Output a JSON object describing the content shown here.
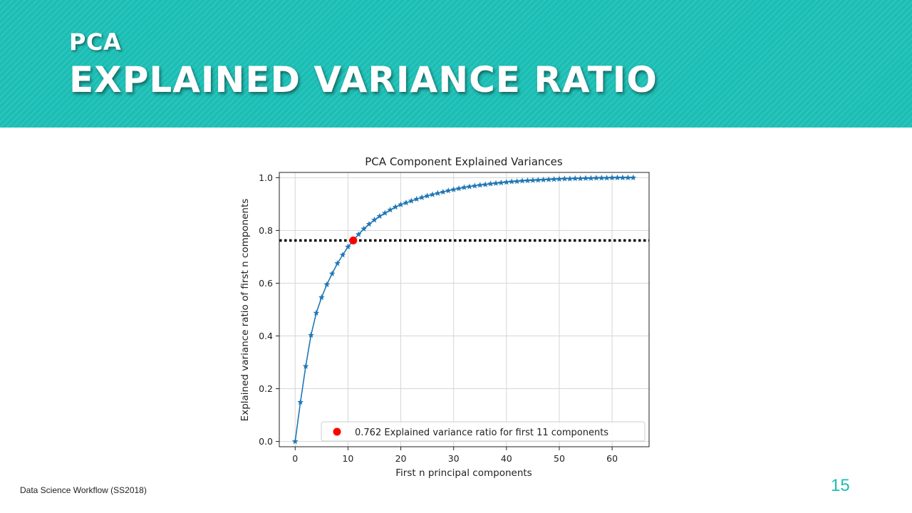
{
  "slide": {
    "subtitle": "PCA",
    "title": "EXPLAINED VARIANCE RATIO",
    "footer": "Data Science Workflow (SS2018)",
    "page_number": "15",
    "accent_color": "#1bbeb4"
  },
  "chart_data": {
    "type": "line",
    "title": "PCA Component Explained Variances",
    "xlabel": "First n principal components",
    "ylabel": "Explained variance ratio of first n components",
    "xlim": [
      -3,
      67
    ],
    "ylim": [
      -0.02,
      1.02
    ],
    "xticks": [
      0,
      10,
      20,
      30,
      40,
      50,
      60
    ],
    "yticks": [
      0.0,
      0.2,
      0.4,
      0.6,
      0.8,
      1.0
    ],
    "grid": true,
    "series": [
      {
        "marker": "star",
        "color": "#1f77b4",
        "x": [
          0,
          1,
          2,
          3,
          4,
          5,
          6,
          7,
          8,
          9,
          10,
          11,
          12,
          13,
          14,
          15,
          16,
          17,
          18,
          19,
          20,
          21,
          22,
          23,
          24,
          25,
          26,
          27,
          28,
          29,
          30,
          31,
          32,
          33,
          34,
          35,
          36,
          37,
          38,
          39,
          40,
          41,
          42,
          43,
          44,
          45,
          46,
          47,
          48,
          49,
          50,
          51,
          52,
          53,
          54,
          55,
          56,
          57,
          58,
          59,
          60,
          61,
          62,
          63,
          64
        ],
        "y": [
          0.0,
          0.149,
          0.285,
          0.403,
          0.487,
          0.546,
          0.595,
          0.636,
          0.675,
          0.707,
          0.738,
          0.762,
          0.785,
          0.806,
          0.824,
          0.84,
          0.854,
          0.866,
          0.878,
          0.889,
          0.898,
          0.905,
          0.912,
          0.919,
          0.925,
          0.931,
          0.936,
          0.941,
          0.946,
          0.951,
          0.955,
          0.959,
          0.963,
          0.966,
          0.969,
          0.972,
          0.974,
          0.977,
          0.979,
          0.981,
          0.983,
          0.985,
          0.986,
          0.988,
          0.989,
          0.99,
          0.991,
          0.992,
          0.993,
          0.994,
          0.995,
          0.996,
          0.996,
          0.997,
          0.997,
          0.998,
          0.998,
          0.999,
          0.999,
          0.999,
          1.0,
          1.0,
          1.0,
          1.0,
          1.0
        ]
      }
    ],
    "threshold": {
      "y": 0.762,
      "style": "dotted",
      "color": "#000000"
    },
    "highlight": {
      "x": 11,
      "y": 0.762,
      "color": "#ff0000"
    },
    "legend": {
      "position": "lower-right",
      "label": "0.762 Explained variance ratio for first 11 components"
    }
  }
}
